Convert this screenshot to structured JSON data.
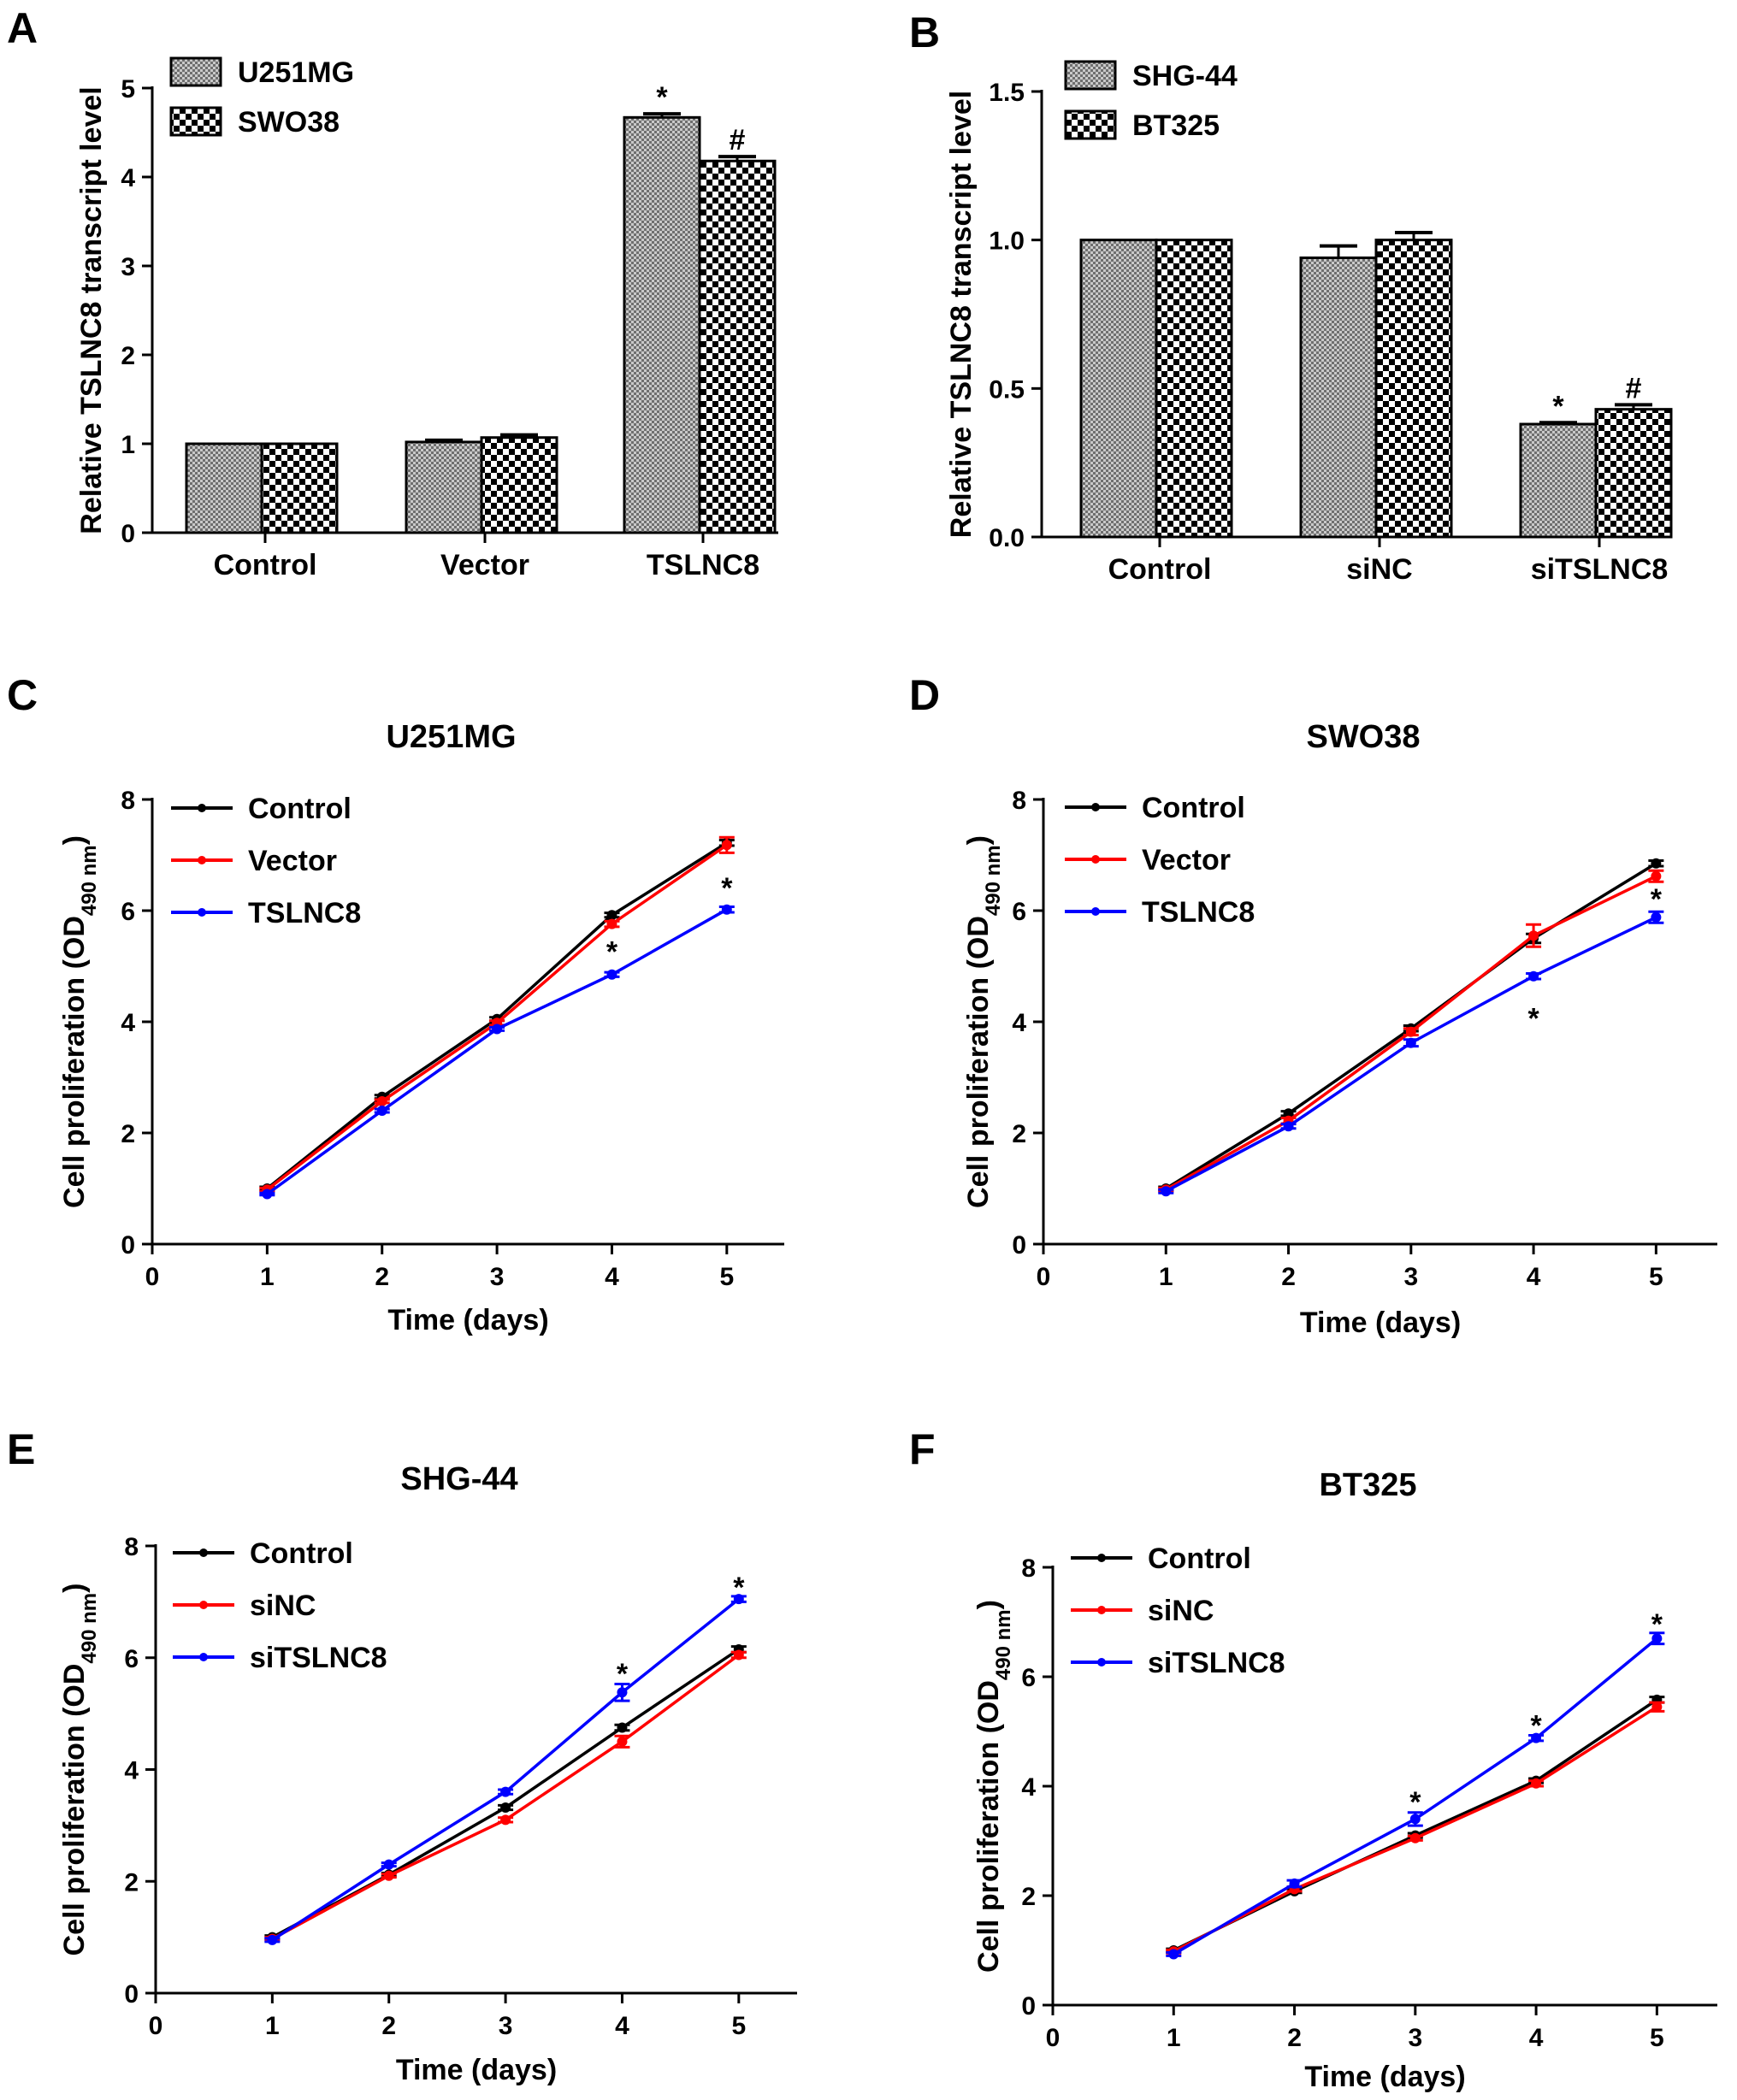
{
  "chart_data": [
    {
      "panel": "A",
      "type": "bar",
      "title": "",
      "xlabel": "",
      "ylabel": "Relative TSLNC8 transcript level",
      "ylim": [
        0,
        5
      ],
      "yticks": [
        "0",
        "1",
        "2",
        "3",
        "4",
        "5"
      ],
      "categories": [
        "Control",
        "Vector",
        "TSLNC8"
      ],
      "series": [
        {
          "name": "U251MG",
          "pattern": "fine",
          "values": [
            1.0,
            1.02,
            4.67
          ],
          "errors": [
            0.0,
            0.02,
            0.04
          ],
          "annotations": [
            "",
            "",
            "*"
          ]
        },
        {
          "name": "SWO38",
          "pattern": "checker",
          "values": [
            1.0,
            1.07,
            4.18
          ],
          "errors": [
            0.0,
            0.03,
            0.05
          ],
          "annotations": [
            "",
            "",
            "#"
          ]
        }
      ],
      "legend_position": "top-left"
    },
    {
      "panel": "B",
      "type": "bar",
      "title": "",
      "xlabel": "",
      "ylabel": "Relative TSLNC8 transcript level",
      "ylim": [
        0,
        1.5
      ],
      "yticks": [
        "0.0",
        "0.5",
        "1.0",
        "1.5"
      ],
      "categories": [
        "Control",
        "siNC",
        "siTSLNC8"
      ],
      "series": [
        {
          "name": "SHG-44",
          "pattern": "fine",
          "values": [
            1.0,
            0.94,
            0.38
          ],
          "errors": [
            0.0,
            0.04,
            0.005
          ],
          "annotations": [
            "",
            "",
            "*"
          ]
        },
        {
          "name": "BT325",
          "pattern": "checker",
          "values": [
            1.0,
            1.0,
            0.43
          ],
          "errors": [
            0.0,
            0.025,
            0.015
          ],
          "annotations": [
            "",
            "",
            "#"
          ]
        }
      ],
      "legend_position": "top-left"
    },
    {
      "panel": "C",
      "type": "line",
      "title": "U251MG",
      "xlabel": "Time (days)",
      "ylabel_main": "Cell proliferation (OD",
      "ylabel_sub": "490 nm",
      "ylabel_end": ")",
      "xlim": [
        0,
        5.5
      ],
      "ylim": [
        0,
        8
      ],
      "xticks": [
        "0",
        "1",
        "2",
        "3",
        "4",
        "5"
      ],
      "yticks": [
        "0",
        "2",
        "4",
        "6",
        "8"
      ],
      "x": [
        1,
        2,
        3,
        4,
        5
      ],
      "series": [
        {
          "name": "Control",
          "color": "#000000",
          "values": [
            1.0,
            2.65,
            4.05,
            5.92,
            7.22
          ],
          "errors": [
            0.03,
            0.03,
            0.03,
            0.04,
            0.05
          ]
        },
        {
          "name": "Vector",
          "color": "#ff0000",
          "values": [
            0.98,
            2.57,
            3.98,
            5.76,
            7.18
          ],
          "errors": [
            0.03,
            0.03,
            0.04,
            0.05,
            0.14
          ]
        },
        {
          "name": "TSLNC8",
          "color": "#0000ff",
          "values": [
            0.9,
            2.4,
            3.87,
            4.85,
            6.02
          ],
          "errors": [
            0.02,
            0.03,
            0.03,
            0.04,
            0.05
          ]
        }
      ],
      "annotations": [
        {
          "x": 4,
          "y": 5.3,
          "text": "*"
        },
        {
          "x": 5,
          "y": 6.45,
          "text": "*"
        }
      ],
      "legend_position": "top-left"
    },
    {
      "panel": "D",
      "type": "line",
      "title": "SWO38",
      "xlabel": "Time (days)",
      "ylabel_main": "Cell proliferation (OD",
      "ylabel_sub": "490 nm",
      "ylabel_end": ")",
      "xlim": [
        0,
        5.5
      ],
      "ylim": [
        0,
        8
      ],
      "xticks": [
        "0",
        "1",
        "2",
        "3",
        "4",
        "5"
      ],
      "yticks": [
        "0",
        "2",
        "4",
        "6",
        "8"
      ],
      "x": [
        1,
        2,
        3,
        4,
        5
      ],
      "series": [
        {
          "name": "Control",
          "color": "#000000",
          "values": [
            1.0,
            2.35,
            3.88,
            5.5,
            6.85
          ],
          "errors": [
            0.03,
            0.04,
            0.05,
            0.08,
            0.05
          ]
        },
        {
          "name": "Vector",
          "color": "#ff0000",
          "values": [
            0.98,
            2.22,
            3.82,
            5.55,
            6.62
          ],
          "errors": [
            0.03,
            0.05,
            0.06,
            0.2,
            0.1
          ]
        },
        {
          "name": "TSLNC8",
          "color": "#0000ff",
          "values": [
            0.95,
            2.12,
            3.62,
            4.82,
            5.88
          ],
          "errors": [
            0.03,
            0.04,
            0.06,
            0.05,
            0.1
          ]
        }
      ],
      "annotations": [
        {
          "x": 4,
          "y": 4.1,
          "text": "*"
        },
        {
          "x": 5,
          "y": 6.25,
          "text": "*"
        }
      ],
      "legend_position": "top-left"
    },
    {
      "panel": "E",
      "type": "line",
      "title": "SHG-44",
      "xlabel": "Time (days)",
      "ylabel_main": "Cell proliferation (OD",
      "ylabel_sub": "490 nm",
      "ylabel_end": ")",
      "xlim": [
        0,
        5.5
      ],
      "ylim": [
        0,
        8
      ],
      "xticks": [
        "0",
        "1",
        "2",
        "3",
        "4",
        "5"
      ],
      "yticks": [
        "0",
        "2",
        "4",
        "6",
        "8"
      ],
      "x": [
        1,
        2,
        3,
        4,
        5
      ],
      "series": [
        {
          "name": "Control",
          "color": "#000000",
          "values": [
            1.0,
            2.12,
            3.32,
            4.75,
            6.15
          ],
          "errors": [
            0.03,
            0.03,
            0.04,
            0.05,
            0.05
          ]
        },
        {
          "name": "siNC",
          "color": "#ff0000",
          "values": [
            0.97,
            2.1,
            3.1,
            4.5,
            6.05
          ],
          "errors": [
            0.03,
            0.03,
            0.04,
            0.1,
            0.05
          ]
        },
        {
          "name": "siTSLNC8",
          "color": "#0000ff",
          "values": [
            0.95,
            2.3,
            3.6,
            5.38,
            7.05
          ],
          "errors": [
            0.03,
            0.03,
            0.04,
            0.15,
            0.05
          ]
        }
      ],
      "annotations": [
        {
          "x": 4,
          "y": 5.75,
          "text": "*"
        },
        {
          "x": 5,
          "y": 7.3,
          "text": "*"
        }
      ],
      "legend_position": "top-left"
    },
    {
      "panel": "F",
      "type": "line",
      "title": "BT325",
      "xlabel": "Time (days)",
      "ylabel_main": "Cell proliferation (OD",
      "ylabel_sub": "490 nm",
      "ylabel_end": ")",
      "xlim": [
        0,
        5.5
      ],
      "ylim": [
        0,
        8
      ],
      "xticks": [
        "0",
        "1",
        "2",
        "3",
        "4",
        "5"
      ],
      "yticks": [
        "0",
        "2",
        "4",
        "6",
        "8"
      ],
      "x": [
        1,
        2,
        3,
        4,
        5
      ],
      "series": [
        {
          "name": "Control",
          "color": "#000000",
          "values": [
            1.0,
            2.08,
            3.1,
            4.1,
            5.58
          ],
          "errors": [
            0.03,
            0.03,
            0.04,
            0.04,
            0.05
          ]
        },
        {
          "name": "siNC",
          "color": "#ff0000",
          "values": [
            0.98,
            2.12,
            3.05,
            4.05,
            5.45
          ],
          "errors": [
            0.03,
            0.04,
            0.04,
            0.05,
            0.08
          ]
        },
        {
          "name": "siTSLNC8",
          "color": "#0000ff",
          "values": [
            0.93,
            2.22,
            3.4,
            4.88,
            6.7
          ],
          "errors": [
            0.03,
            0.06,
            0.12,
            0.05,
            0.1
          ]
        }
      ],
      "annotations": [
        {
          "x": 3,
          "y": 3.75,
          "text": "*"
        },
        {
          "x": 4,
          "y": 5.15,
          "text": "*"
        },
        {
          "x": 5,
          "y": 7.0,
          "text": "*"
        }
      ],
      "legend_position": "top-left"
    }
  ]
}
